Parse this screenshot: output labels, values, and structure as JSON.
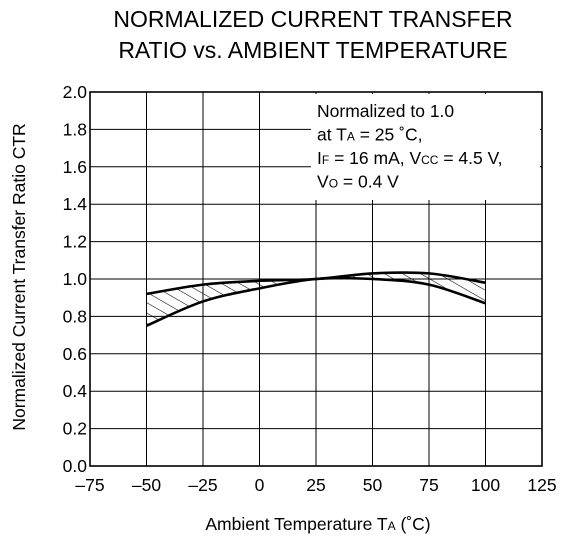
{
  "chart_data": {
    "type": "area",
    "title": [
      "NORMALIZED CURRENT TRANSFER",
      "RATIO vs. AMBIENT TEMPERATURE"
    ],
    "xlabel": {
      "text": "Ambient Temperature  T",
      "sub": "A",
      "unit": " (˚C)"
    },
    "ylabel": "Normalized Current Transfer Ratio  CTR",
    "xlim": [
      -75,
      125
    ],
    "ylim": [
      0.0,
      2.0
    ],
    "x_ticks": [
      -75,
      -50,
      -25,
      0,
      25,
      50,
      75,
      100,
      125
    ],
    "x_tick_labels": [
      "–75",
      "–50",
      "–25",
      "0",
      "25",
      "50",
      "75",
      "100",
      "125"
    ],
    "y_ticks": [
      0.0,
      0.2,
      0.4,
      0.6,
      0.8,
      1.0,
      1.2,
      1.4,
      1.6,
      1.8,
      2.0
    ],
    "y_tick_labels": [
      "0.0",
      "0.2",
      "0.4",
      "0.6",
      "0.8",
      "1.0",
      "1.2",
      "1.4",
      "1.6",
      "1.8",
      "2.0"
    ],
    "grid": true,
    "hatched_band": true,
    "series": [
      {
        "role": "upper",
        "x": [
          -50,
          -25,
          0,
          25,
          50,
          75,
          100
        ],
        "y": [
          0.92,
          0.97,
          0.99,
          1.0,
          1.03,
          1.03,
          0.98
        ]
      },
      {
        "role": "lower",
        "x": [
          -50,
          -25,
          0,
          25,
          50,
          75,
          100
        ],
        "y": [
          0.75,
          0.88,
          0.95,
          1.0,
          1.0,
          0.97,
          0.87
        ]
      }
    ],
    "annotation": [
      [
        {
          "t": "Normalized to 1.0"
        }
      ],
      [
        {
          "t": "at T"
        },
        {
          "t": "A",
          "sub": true
        },
        {
          "t": " = 25 ˚C,"
        }
      ],
      [
        {
          "t": "I"
        },
        {
          "t": "F",
          "sub": true
        },
        {
          "t": " = 16 mA, V"
        },
        {
          "t": "CC",
          "sub": true
        },
        {
          "t": " = 4.5 V,"
        }
      ],
      [
        {
          "t": "V"
        },
        {
          "t": "O",
          "sub": true
        },
        {
          "t": " = 0.4 V"
        }
      ]
    ]
  }
}
